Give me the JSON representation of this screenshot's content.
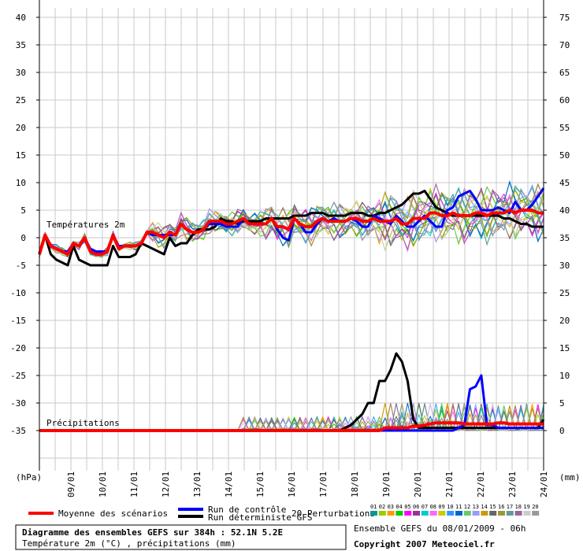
{
  "chart_data": {
    "type": "line",
    "title": "Diagramme des ensembles GEFS sur 384h : 52.1N 5.2E",
    "subtitle": "Température 2m (°C) , précipitations (mm)",
    "left_axis_unit": "(hPa)",
    "right_axis_unit": "(mm)",
    "left_ticks": [
      40,
      35,
      30,
      25,
      20,
      15,
      10,
      5,
      0,
      -5,
      -10,
      -15,
      -20,
      -25,
      -30,
      -35
    ],
    "right_ticks": [
      75,
      70,
      65,
      60,
      55,
      50,
      45,
      40,
      35,
      30,
      25,
      20,
      15,
      10,
      5,
      0
    ],
    "x_labels": [
      "09/01",
      "10/01",
      "11/01",
      "12/01",
      "13/01",
      "14/01",
      "15/01",
      "16/01",
      "17/01",
      "18/01",
      "19/01",
      "20/01",
      "21/01",
      "22/01",
      "23/01",
      "24/01"
    ],
    "temp_label": "Températures 2m",
    "precip_label": "Précipitations",
    "series": [
      {
        "name": "Moyenne des scénarios",
        "color": "#ff0000",
        "temp": [
          -3,
          0.5,
          -1.5,
          -2,
          -2.5,
          -3,
          -1,
          -1.5,
          0,
          -2.5,
          -3,
          -3,
          -2.5,
          0.5,
          -2,
          -1.5,
          -1.5,
          -1.5,
          -1,
          1,
          1,
          0.5,
          0,
          1,
          0.5,
          2.5,
          1.5,
          1,
          1,
          1.5,
          3,
          3,
          3,
          2.5,
          2.5,
          3,
          3.5,
          2.5,
          2.5,
          2.5,
          2.5,
          3.5,
          2,
          2,
          1.5,
          3.5,
          2.5,
          2,
          2,
          3,
          3.5,
          3,
          3,
          3,
          3,
          3.5,
          3.5,
          3,
          3,
          3.5,
          3,
          3,
          3,
          3.5,
          2.5,
          2.5,
          3.5,
          3.5,
          3.5,
          4.5,
          4.5,
          4,
          4,
          4.5,
          4,
          4,
          4,
          4.5,
          4.5,
          4,
          4.5,
          4.5,
          4.5,
          5,
          4.5,
          5,
          5,
          5,
          4.5,
          4.5
        ],
        "precip": [
          0,
          0,
          0,
          0,
          0,
          0,
          0,
          0,
          0,
          0,
          0,
          0,
          0,
          0,
          0,
          0,
          0,
          0,
          0,
          0,
          0,
          0,
          0,
          0,
          0,
          0,
          0,
          0,
          0,
          0,
          0,
          0,
          0,
          0,
          0,
          0,
          0,
          0,
          0,
          0,
          0,
          0,
          0,
          0,
          0,
          0,
          0,
          0,
          0,
          0,
          0,
          0,
          0,
          0,
          0,
          0,
          0,
          0,
          0,
          0,
          0,
          0.5,
          0.5,
          0.5,
          0.5,
          0.5,
          0.8,
          0.8,
          1,
          1.2,
          1.4,
          1.4,
          1.4,
          1.4,
          1.4,
          1.2,
          1.2,
          1.2,
          1.2,
          1.2,
          1.2,
          1.4,
          1.4,
          1.2,
          1.2,
          1.2,
          1.2,
          1.2,
          1.2,
          1.2
        ]
      },
      {
        "name": "Run de contrôle",
        "color": "#0000ff",
        "temp": [
          -3,
          0.5,
          -1.5,
          -2,
          -2.5,
          -2.5,
          -1,
          -1.5,
          0,
          -2,
          -2.5,
          -2.5,
          -2.5,
          0.5,
          -1.5,
          -1.5,
          -1.5,
          -1.5,
          -1,
          1,
          0.5,
          0.5,
          0.5,
          0.5,
          0.5,
          2.5,
          1.5,
          1,
          1,
          1.5,
          2.5,
          2.5,
          2.5,
          2,
          2,
          2,
          3.5,
          2.5,
          2.5,
          2.5,
          2.5,
          3.5,
          1.5,
          0,
          -0.5,
          3.5,
          2.5,
          1,
          1,
          2.5,
          3.5,
          3,
          3.5,
          3,
          3,
          3.5,
          3,
          2,
          2,
          4,
          3.5,
          3,
          2.5,
          4,
          3,
          2,
          2,
          3,
          4,
          3,
          2,
          2,
          5,
          5.5,
          7.5,
          8,
          8.5,
          7,
          5,
          5,
          5,
          5.5,
          5,
          4.5,
          6.5,
          5,
          5,
          6,
          7.5,
          9
        ],
        "precip": [
          0,
          0,
          0,
          0,
          0,
          0,
          0,
          0,
          0,
          0,
          0,
          0,
          0,
          0,
          0,
          0,
          0,
          0,
          0,
          0,
          0,
          0,
          0,
          0,
          0,
          0,
          0,
          0,
          0,
          0,
          0,
          0,
          0,
          0,
          0,
          0,
          0,
          0,
          0,
          0,
          0,
          0,
          0,
          0,
          0,
          0,
          0,
          0,
          0,
          0,
          0,
          0,
          0,
          0,
          0,
          0,
          0,
          0,
          0,
          0,
          0,
          0,
          0,
          0,
          0,
          0,
          0,
          0,
          0,
          0,
          0,
          0,
          0,
          0,
          0.5,
          1,
          7.5,
          8,
          10,
          1,
          1,
          0.5,
          0.5,
          0.5,
          0.5,
          0.5,
          0.5,
          0.5,
          0.5,
          0.5
        ]
      },
      {
        "name": "Run déterministe GFS",
        "color": "#000000",
        "temp": [
          -3,
          0.5,
          -3,
          -4,
          -4.5,
          -5,
          -1.5,
          -4,
          -4.5,
          -5,
          -5,
          -5,
          -5,
          -1.5,
          -3.5,
          -3.5,
          -3.5,
          -3,
          -1,
          -1.5,
          -2,
          -2.5,
          -3,
          0,
          -1.5,
          -1,
          -1,
          0.5,
          1.5,
          1.5,
          1.5,
          2,
          3.5,
          3,
          3,
          2.5,
          3,
          3,
          3,
          3,
          3.5,
          3.5,
          3.5,
          3.5,
          3.5,
          4,
          4,
          4,
          4.5,
          4.5,
          4.5,
          4,
          4,
          4,
          4,
          4.5,
          4.5,
          4.5,
          4,
          4,
          4.5,
          4.5,
          5,
          5.5,
          6,
          7,
          8,
          8,
          8.5,
          7,
          5.5,
          5,
          4.5,
          4,
          4,
          4,
          4,
          4,
          4,
          4,
          4,
          4,
          3.5,
          3.5,
          3,
          2.5,
          2.5,
          2,
          2,
          2
        ],
        "precip": [
          0,
          0,
          0,
          0,
          0,
          0,
          0,
          0,
          0,
          0,
          0,
          0,
          0,
          0,
          0,
          0,
          0,
          0,
          0,
          0,
          0,
          0,
          0,
          0,
          0,
          0,
          0,
          0,
          0,
          0,
          0,
          0,
          0,
          0,
          0,
          0,
          0,
          0,
          0,
          0,
          0,
          0,
          0,
          0,
          0,
          0,
          0,
          0,
          0,
          0,
          0,
          0,
          0,
          0,
          0.5,
          1,
          2,
          3,
          5,
          5,
          9,
          9,
          11,
          14,
          12.5,
          9,
          2,
          0.5,
          0.5,
          0.5,
          0.5,
          0.5,
          0.5,
          0.5,
          0.5,
          0.5,
          0.5,
          0.5,
          0.5,
          0.5,
          0.5,
          0.5,
          0.5,
          0.5,
          0.5,
          0.5,
          0.5,
          0.5,
          0.5,
          2
        ]
      }
    ],
    "perturbations_label": "20 Perturbations",
    "perturbation_ids": [
      "01",
      "02",
      "03",
      "04",
      "05",
      "06",
      "07",
      "08",
      "09",
      "10",
      "11",
      "12",
      "13",
      "14",
      "15",
      "16",
      "17",
      "18",
      "19",
      "20"
    ],
    "perturbation_colors": [
      "#009999",
      "#99cc00",
      "#ff9900",
      "#00cc00",
      "#ff00ff",
      "#993399",
      "#00cccc",
      "#ff66ff",
      "#cccc00",
      "#3399ff",
      "#0066cc",
      "#66cc66",
      "#9999ff",
      "#cc9900",
      "#666666",
      "#999933",
      "#669999",
      "#996699",
      "#cccccc",
      "#999999"
    ],
    "ensemble_info": "Ensemble GEFS du 08/01/2009 - 06h",
    "copyright": "Copyright 2007 Meteociel.fr"
  }
}
